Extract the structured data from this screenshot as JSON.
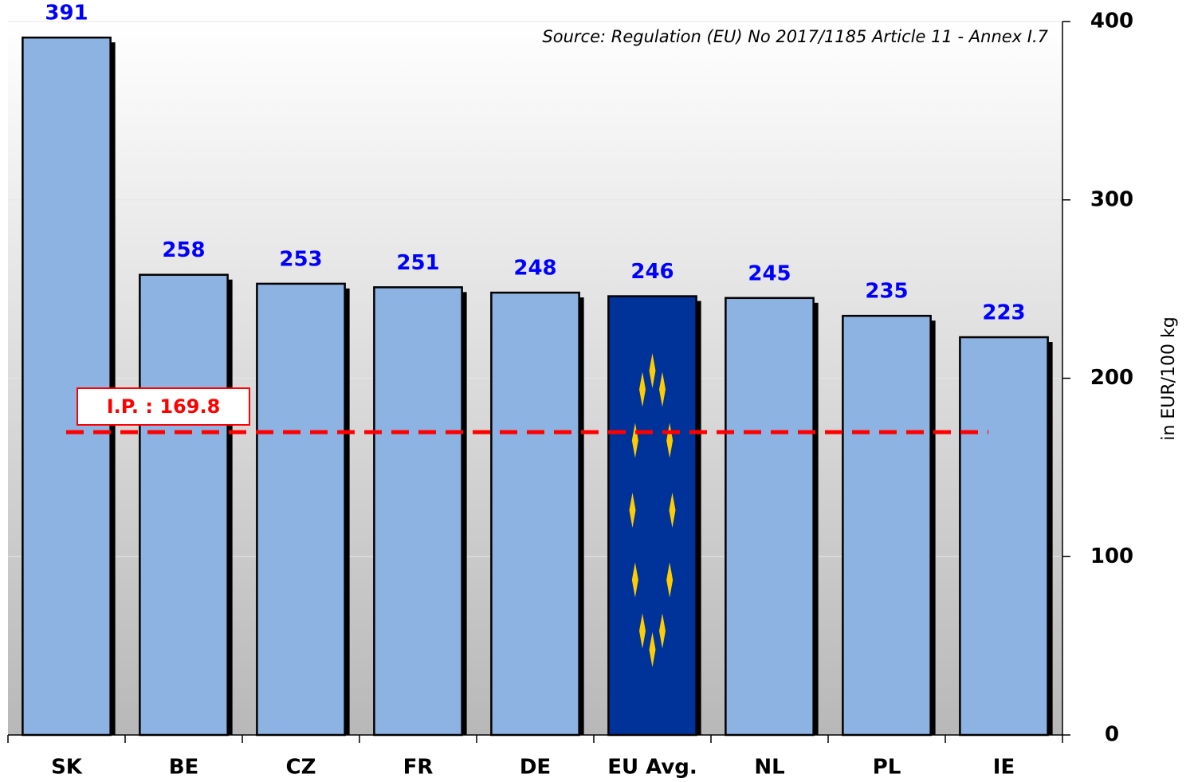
{
  "chart_data": {
    "type": "bar",
    "source": "Source: Regulation (EU) No 2017/1185 Article 11 - Annex I.7",
    "y_axis_label": "in EUR/100 kg",
    "categories": [
      "SK",
      "BE",
      "CZ",
      "FR",
      "DE",
      "EU Avg.",
      "NL",
      "PL",
      "IE"
    ],
    "values": [
      391,
      258,
      253,
      251,
      248,
      246,
      245,
      235,
      223
    ],
    "color": "#8db3e2",
    "highlight_category": "EU Avg.",
    "highlight_color": "#003399",
    "value_label_color": "#0000ff",
    "ylim": [
      0,
      400
    ],
    "yticks": [
      0,
      100,
      200,
      300,
      400
    ],
    "grid": true,
    "y_axis_side": "right",
    "reference_line": {
      "label": "I.P. : 169.8",
      "value": 169.8,
      "color": "#ff0000"
    }
  }
}
